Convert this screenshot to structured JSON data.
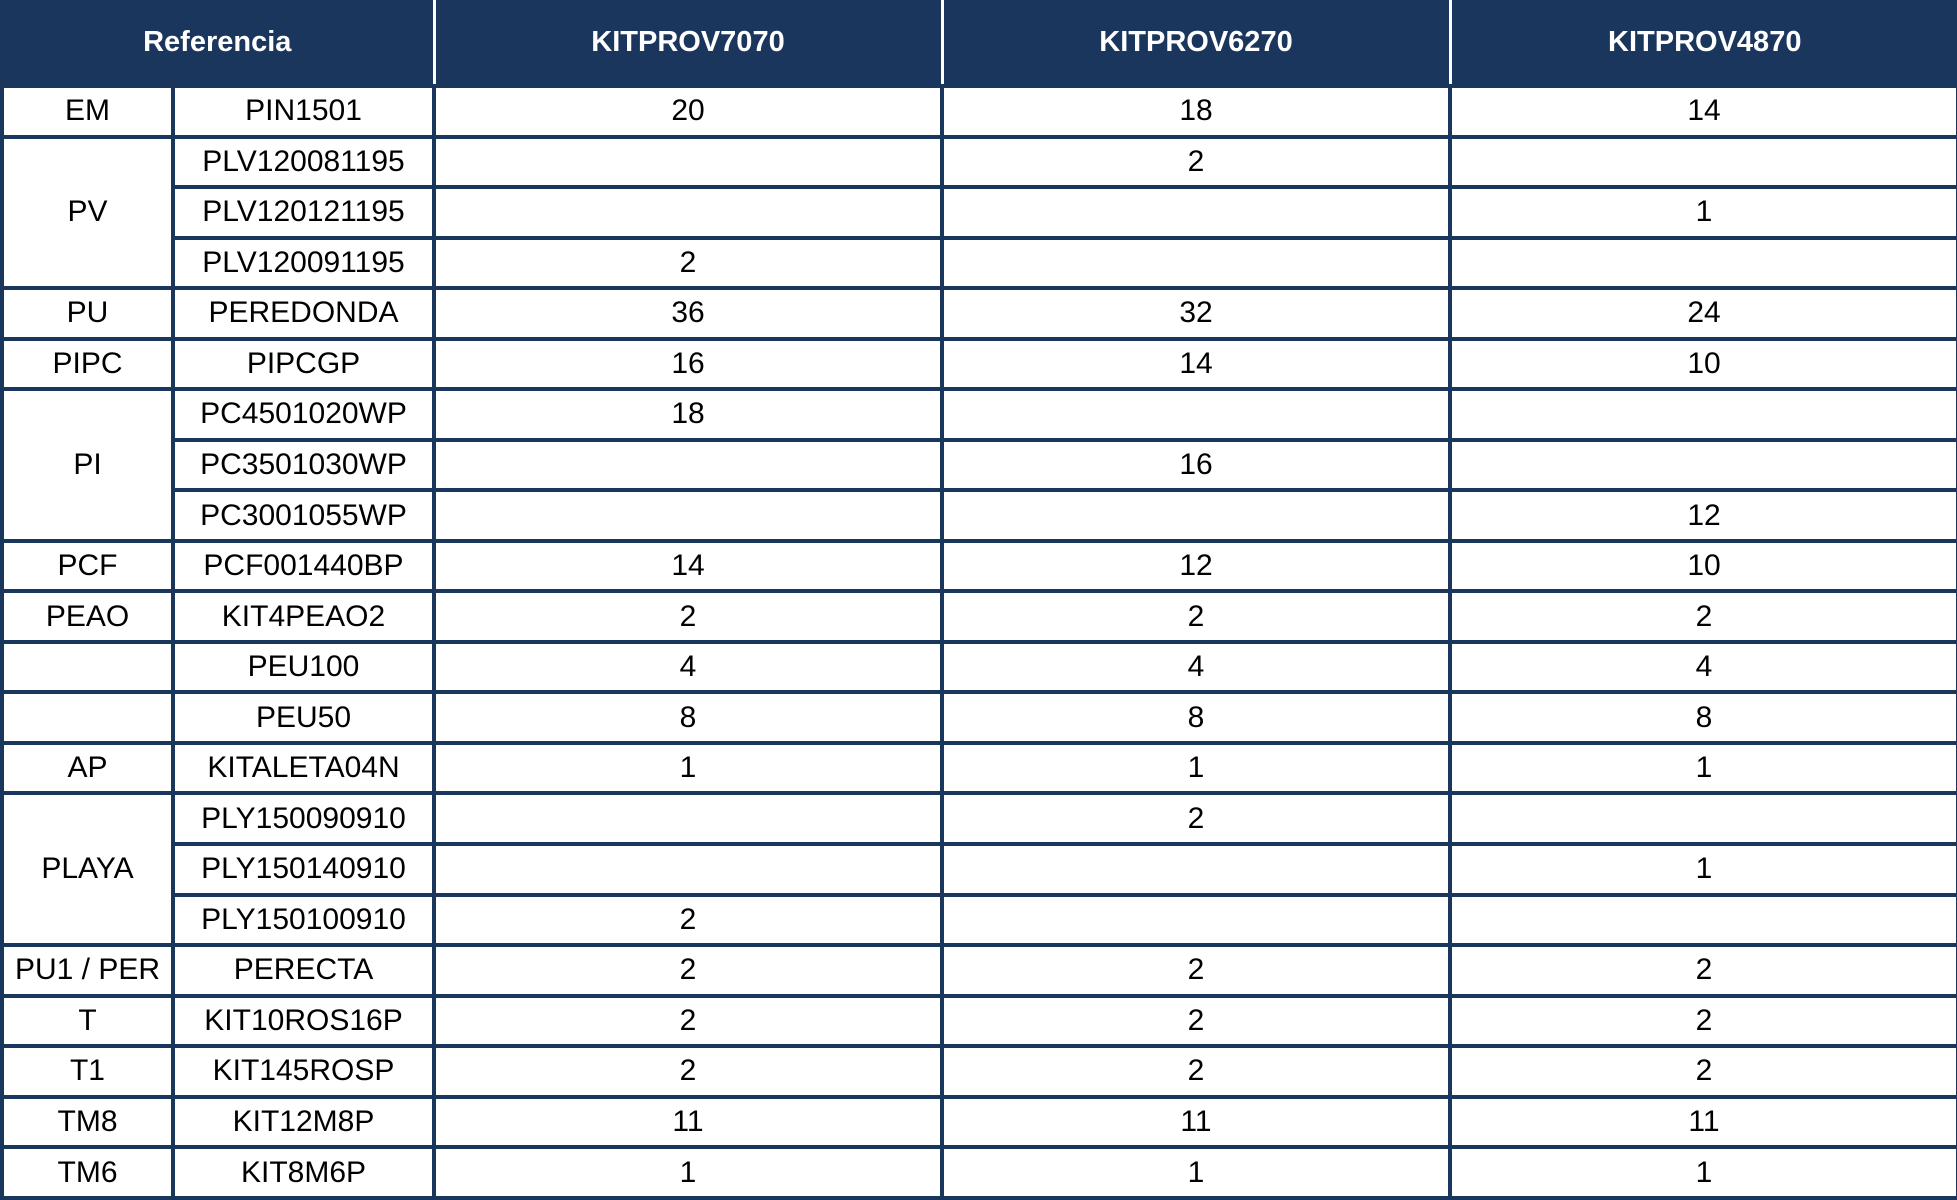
{
  "colors": {
    "header_bg": "#1b365d",
    "border": "#1b365d"
  },
  "header": {
    "reference": "Referencia",
    "kits": [
      "KITPROV7070",
      "KITPROV6270",
      "KITPROV4870"
    ]
  },
  "rows": [
    {
      "group": "EM",
      "span": 1,
      "ref": "PIN1501",
      "values": [
        "20",
        "18",
        "14"
      ]
    },
    {
      "group": "PV",
      "span": 3,
      "ref": "PLV120081195",
      "values": [
        "",
        "2",
        ""
      ]
    },
    {
      "ref": "PLV120121195",
      "values": [
        "",
        "",
        "1"
      ]
    },
    {
      "ref": "PLV120091195",
      "values": [
        "2",
        "",
        ""
      ]
    },
    {
      "group": "PU",
      "span": 1,
      "ref": "PEREDONDA",
      "values": [
        "36",
        "32",
        "24"
      ]
    },
    {
      "group": "PIPC",
      "span": 1,
      "ref": "PIPCGP",
      "values": [
        "16",
        "14",
        "10"
      ]
    },
    {
      "group": "PI",
      "span": 3,
      "ref": "PC4501020WP",
      "values": [
        "18",
        "",
        ""
      ]
    },
    {
      "ref": "PC3501030WP",
      "values": [
        "",
        "16",
        ""
      ]
    },
    {
      "ref": "PC3001055WP",
      "values": [
        "",
        "",
        "12"
      ]
    },
    {
      "group": "PCF",
      "span": 1,
      "ref": "PCF001440BP",
      "values": [
        "14",
        "12",
        "10"
      ]
    },
    {
      "group": "PEAO",
      "span": 1,
      "ref": "KIT4PEAO2",
      "values": [
        "2",
        "2",
        "2"
      ]
    },
    {
      "group": "",
      "span": 1,
      "ref": "PEU100",
      "values": [
        "4",
        "4",
        "4"
      ]
    },
    {
      "group": "",
      "span": 1,
      "ref": "PEU50",
      "values": [
        "8",
        "8",
        "8"
      ]
    },
    {
      "group": "AP",
      "span": 1,
      "ref": "KITALETA04N",
      "values": [
        "1",
        "1",
        "1"
      ]
    },
    {
      "group": "PLAYA",
      "span": 3,
      "ref": "PLY150090910",
      "values": [
        "",
        "2",
        ""
      ]
    },
    {
      "ref": "PLY150140910",
      "values": [
        "",
        "",
        "1"
      ]
    },
    {
      "ref": "PLY150100910",
      "values": [
        "2",
        "",
        ""
      ]
    },
    {
      "group": "PU1 / PER",
      "span": 1,
      "ref": "PERECTA",
      "values": [
        "2",
        "2",
        "2"
      ]
    },
    {
      "group": "T",
      "span": 1,
      "ref": "KIT10ROS16P",
      "values": [
        "2",
        "2",
        "2"
      ]
    },
    {
      "group": "T1",
      "span": 1,
      "ref": "KIT145ROSP",
      "values": [
        "2",
        "2",
        "2"
      ]
    },
    {
      "group": "TM8",
      "span": 1,
      "ref": "KIT12M8P",
      "values": [
        "11",
        "11",
        "11"
      ]
    },
    {
      "group": "TM6",
      "span": 1,
      "ref": "KIT8M6P",
      "values": [
        "1",
        "1",
        "1"
      ]
    }
  ]
}
